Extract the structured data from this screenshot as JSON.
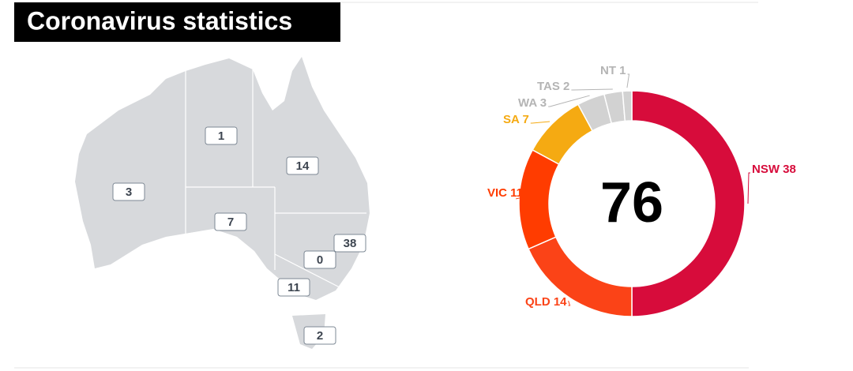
{
  "title": "Coronavirus statistics",
  "map": {
    "values": [
      1,
      14,
      3,
      7,
      38,
      0,
      11,
      2
    ]
  },
  "chart_data": {
    "type": "pie",
    "donut": true,
    "values": [
      38,
      14,
      11,
      7,
      3,
      2,
      1
    ],
    "value_labels": [
      "NSW 38",
      "QLD 14",
      "VIC 11",
      "SA 7",
      "WA 3",
      "TAS 2",
      "NT 1"
    ],
    "colors": [
      "#d70c3b",
      "#fb4317",
      "#ff3c00",
      "#f5aa12",
      "#d2d2d2",
      "#d2d2d2",
      "#d2d2d2"
    ],
    "label_colors": [
      "#d70c3b",
      "#fb4317",
      "#ff3c00",
      "#f5aa12",
      "#b4b4b4",
      "#b4b4b4",
      "#b4b4b4"
    ],
    "center_label": 76
  }
}
